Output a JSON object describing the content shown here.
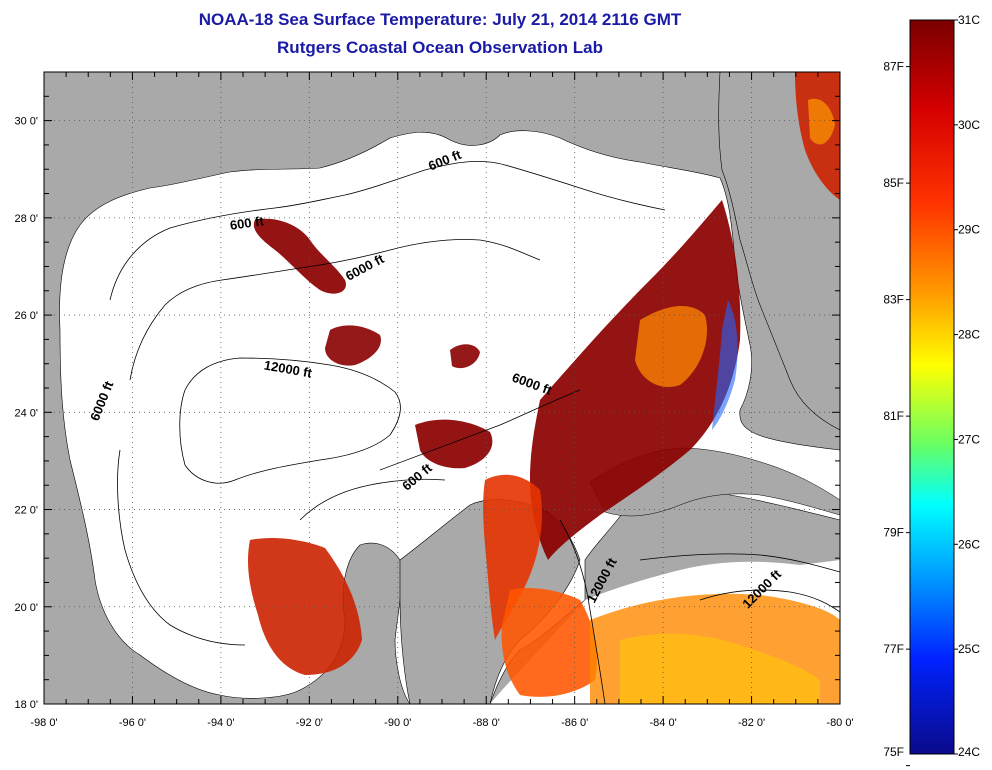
{
  "title": {
    "line1": "NOAA-18 Sea Surface Temperature:  July 21, 2014 2116 GMT",
    "line2": "Rutgers Coastal Ocean Observation Lab"
  },
  "map": {
    "lon_range": [
      -98,
      -80
    ],
    "lat_range": [
      18,
      31
    ],
    "lon_ticks": [
      {
        "value": -98,
        "label": "-98 0'"
      },
      {
        "value": -96,
        "label": "-96 0'"
      },
      {
        "value": -94,
        "label": "-94 0'"
      },
      {
        "value": -92,
        "label": "-92 0'"
      },
      {
        "value": -90,
        "label": "-90 0'"
      },
      {
        "value": -88,
        "label": "-88 0'"
      },
      {
        "value": -86,
        "label": "-86 0'"
      },
      {
        "value": -84,
        "label": "-84 0'"
      },
      {
        "value": -82,
        "label": "-82 0'"
      },
      {
        "value": -80,
        "label": "-80 0'"
      }
    ],
    "lat_ticks": [
      {
        "value": 18,
        "label": "18 0'"
      },
      {
        "value": 20,
        "label": "20 0'"
      },
      {
        "value": 22,
        "label": "22 0'"
      },
      {
        "value": 24,
        "label": "24 0'"
      },
      {
        "value": 26,
        "label": "26 0'"
      },
      {
        "value": 28,
        "label": "28 0'"
      },
      {
        "value": 30,
        "label": "30 0'"
      }
    ],
    "land_color": "#a9a9a9",
    "ocean_color": "#ffffff",
    "contour_labels": [
      {
        "text": "600 ft",
        "lon": -88.9,
        "lat": 29.1,
        "angle": -22
      },
      {
        "text": "600 ft",
        "lon": -93.4,
        "lat": 27.8,
        "angle": -8
      },
      {
        "text": "6000 ft",
        "lon": -90.7,
        "lat": 26.9,
        "angle": -28
      },
      {
        "text": "12000 ft",
        "lon": -92.5,
        "lat": 24.8,
        "angle": 10
      },
      {
        "text": "6000 ft",
        "lon": -96.6,
        "lat": 24.2,
        "angle": -68
      },
      {
        "text": "6000 ft",
        "lon": -87.0,
        "lat": 24.5,
        "angle": 20
      },
      {
        "text": "600 ft",
        "lon": -89.5,
        "lat": 22.6,
        "angle": -40
      },
      {
        "text": "12000 ft",
        "lon": -85.3,
        "lat": 20.5,
        "angle": -62
      },
      {
        "text": "12000 ft",
        "lon": -81.7,
        "lat": 20.3,
        "angle": -45
      }
    ]
  },
  "colorbar": {
    "top_color": "#7a0000",
    "bottom_color": "#0a0a8a",
    "celsius_labels": [
      {
        "value": 31,
        "label": "31C"
      },
      {
        "value": 30,
        "label": "30C"
      },
      {
        "value": 29,
        "label": "29C"
      },
      {
        "value": 28,
        "label": "28C"
      },
      {
        "value": 27,
        "label": "27C"
      },
      {
        "value": 26,
        "label": "26C"
      },
      {
        "value": 25,
        "label": "25C"
      },
      {
        "value": 24,
        "label": "24C"
      }
    ],
    "fahrenheit_labels": [
      {
        "value": 87,
        "label": "87F"
      },
      {
        "value": 85,
        "label": "85F"
      },
      {
        "value": 83,
        "label": "83F"
      },
      {
        "value": 81,
        "label": "81F"
      },
      {
        "value": 79,
        "label": "79F"
      },
      {
        "value": 77,
        "label": "77F"
      },
      {
        "value": 75,
        "label": "75F"
      }
    ]
  }
}
